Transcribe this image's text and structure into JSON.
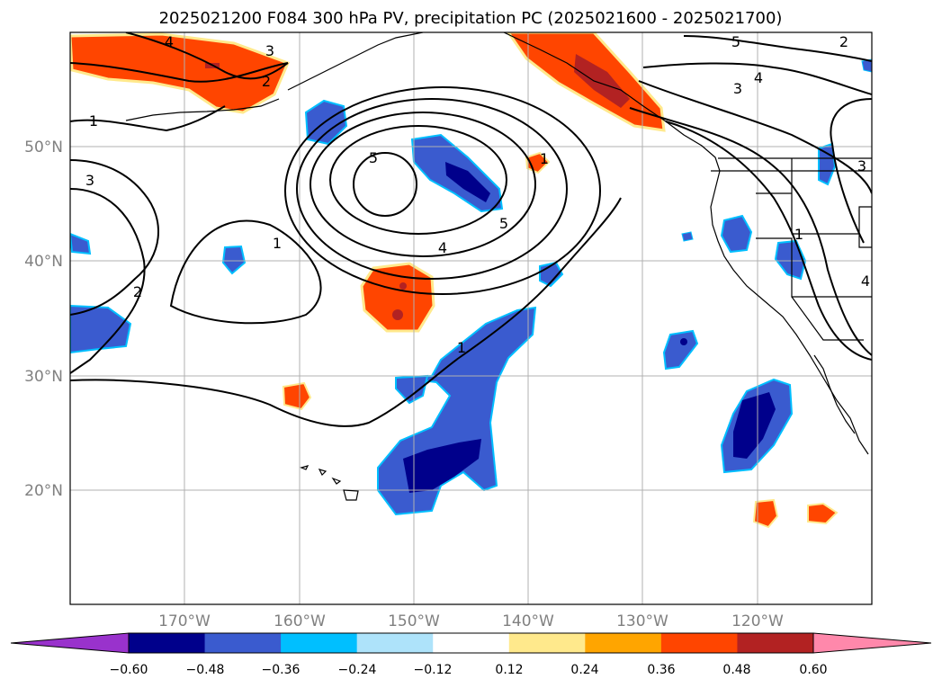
{
  "title": "2025021200 F084 300 hPa PV, precipitation PC (2025021600 - 2025021700)",
  "map": {
    "projection": "PlateCarree",
    "lon_range": [
      -180,
      -110
    ],
    "lat_range": [
      10,
      60
    ],
    "grid": true,
    "lat_labels": [
      "50°N",
      "40°N",
      "30°N",
      "20°N"
    ],
    "lon_labels": [
      "170°W",
      "160°W",
      "150°W",
      "140°W",
      "130°W",
      "120°W"
    ]
  },
  "contour_labels": {
    "pv": [
      "4",
      "3",
      "2",
      "1",
      "3",
      "1",
      "2",
      "5",
      "4",
      "5",
      "1",
      "1",
      "5",
      "4",
      "3",
      "3",
      "2",
      "1",
      "4"
    ]
  },
  "colorbar": {
    "ticks": [
      "−0.60",
      "−0.48",
      "−0.36",
      "−0.24",
      "−0.12",
      "0.12",
      "0.24",
      "0.36",
      "0.48",
      "0.60"
    ],
    "colors": {
      "under": "#9932cc",
      "bins": [
        "#00008b",
        "#3a5bcf",
        "#00bfff",
        "#aee3fa",
        "#ffffff",
        "#ffe98c",
        "#ffa500",
        "#ff4500",
        "#b22222"
      ],
      "over": "#ff88ab"
    }
  }
}
